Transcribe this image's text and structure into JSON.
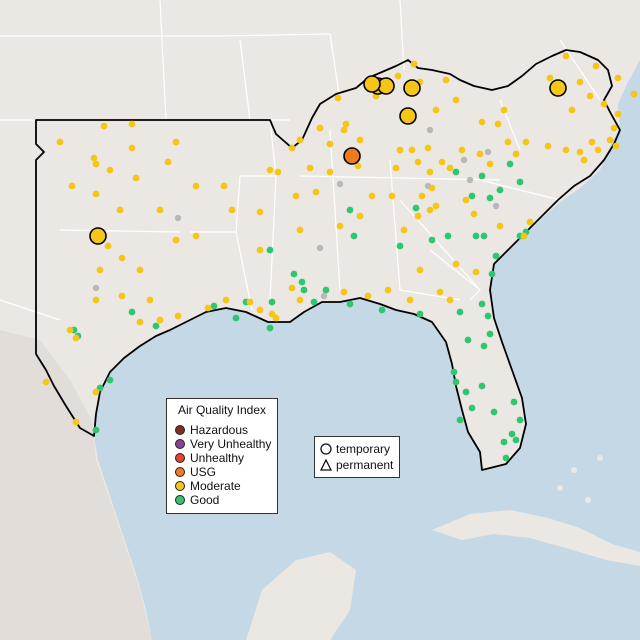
{
  "colors": {
    "ocean": "#c5d8e6",
    "land": "#ebe8e4",
    "land_south": "#ded9d3",
    "state_line": "#ffffff",
    "region_outline": "#000000",
    "hazardous": "#7e2f1f",
    "very_unhealthy": "#8f3f97",
    "unhealthy": "#e8412e",
    "usg": "#ee7b22",
    "moderate": "#f5c518",
    "good": "#2ec76f",
    "no_data": "#b8b8b8"
  },
  "aqi_legend": {
    "title": "Air Quality Index",
    "items": [
      {
        "label": "Hazardous",
        "color": "#7e2f1f"
      },
      {
        "label": "Very Unhealthy",
        "color": "#8f3f97"
      },
      {
        "label": "Unhealthy",
        "color": "#e8412e"
      },
      {
        "label": "USG",
        "color": "#ee7b22"
      },
      {
        "label": "Moderate",
        "color": "#f5c518"
      },
      {
        "label": "Good",
        "color": "#2ec76f"
      }
    ]
  },
  "monitor_legend": {
    "items": [
      {
        "label": "temporary",
        "icon": "circle-icon"
      },
      {
        "label": "permanent",
        "icon": "triangle-icon"
      }
    ]
  }
}
